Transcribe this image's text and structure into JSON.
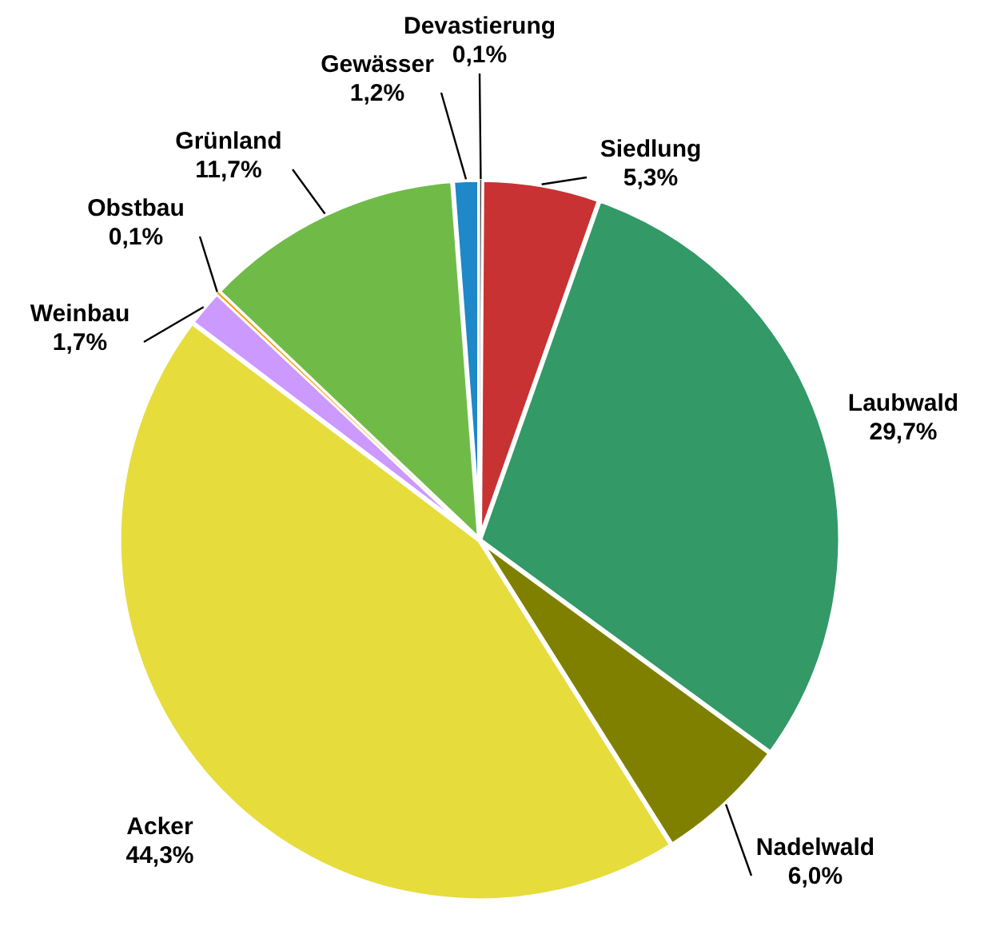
{
  "chart_data": {
    "type": "pie",
    "categories": [
      "Devastierung",
      "Siedlung",
      "Laubwald",
      "Nadelwald",
      "Acker",
      "Weinbau",
      "Obstbau",
      "Grünland",
      "Gewässer"
    ],
    "values": [
      0.1,
      5.3,
      29.7,
      6.0,
      44.3,
      1.7,
      0.1,
      11.7,
      1.2
    ],
    "value_labels": [
      "0,1%",
      "5,3%",
      "29,7%",
      "6,0%",
      "44,3%",
      "1,7%",
      "0,1%",
      "11,7%",
      "1,2%"
    ],
    "colors": [
      "#404040",
      "#c83232",
      "#339966",
      "#808000",
      "#e6dc3c",
      "#cc99ff",
      "#ff9900",
      "#70bb48",
      "#1e88c8"
    ],
    "legend": false
  }
}
